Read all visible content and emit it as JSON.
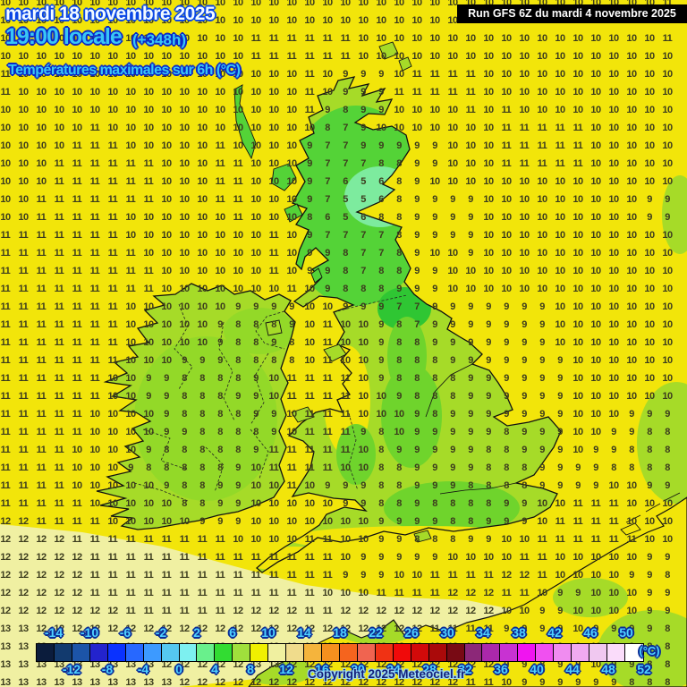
{
  "header": {
    "date": "mardi 18 novembre 2025",
    "time": "19:00 locale",
    "forecast_offset": "(+348h)",
    "subtitle": "Températures maximales sur 6h (°C)",
    "run_info": "Run GFS 6Z du mardi 4 novembre 2025"
  },
  "footer": {
    "copyright": "Copyright 2025 Meteociel.fr",
    "unit_label": "(°C)"
  },
  "palette": {
    "sea": "#f2e50a",
    "pale": "#f0f0a2",
    "land": "#a6db28",
    "green": "#54d337",
    "green2": "#6fd42c",
    "green3": "#93d928",
    "dgreen": "#2fc633",
    "mint": "#7deb9e",
    "num": "#3c3c1e"
  },
  "colorbar": {
    "labels_top": [
      "-14",
      "-10",
      "-6",
      "-2",
      "2",
      "6",
      "10",
      "14",
      "18",
      "22",
      "26",
      "30",
      "34",
      "38",
      "42",
      "46",
      "50"
    ],
    "labels_bottom": [
      "-12",
      "-8",
      "-4",
      "0",
      "4",
      "8",
      "12",
      "16",
      "20",
      "24",
      "28",
      "32",
      "36",
      "40",
      "44",
      "48",
      "52"
    ],
    "colors": [
      "#0b1c3c",
      "#123a6e",
      "#1c54a8",
      "#2323cd",
      "#0a32ff",
      "#2768ff",
      "#3d9aff",
      "#55c8f0",
      "#7df0f0",
      "#69f08c",
      "#32dc32",
      "#a0e03c",
      "#f0f000",
      "#f0f0a0",
      "#f0dc8c",
      "#f5b43c",
      "#f5901e",
      "#f5641e",
      "#f06450",
      "#f03214",
      "#f00a0a",
      "#d20a0a",
      "#aa0a0a",
      "#780a14",
      "#8c2878",
      "#aa28aa",
      "#c832d2",
      "#f014f0",
      "#f050f0",
      "#f08cf0",
      "#f0aaf0",
      "#f0c8f0",
      "#fadcfa",
      "#ffffff"
    ]
  },
  "grid": {
    "rows": [
      "10 10 10 10 10 10 10 10 10 10 10 10 10 10 10 10 10 10 10 10 10 10 10 10 10 10 10 10 10 10 10 10 10 10 10 10 10 11",
      "10 10 10 10 10 10 10 10 10 10 10 10 10 10 10 10 10 10 10 10 10 10 10 10 10 10 10 10 10 10 10 10 10 10 10 10 10 11",
      "10 10 10 10 10 10 10 10 10 10 10 10 10 10 11 11 11 11 11 11 10 10 10 10 10 10 10 10 10 10 10 10 10 10 10 10 10 11",
      "10 10 10 10 10 10 10 10 10 10 10 10 10 10 11 11 11 11 11 11 10 10 10 10 10 10 10 10 10 10 10 10 10 10 10 10 10 10",
      "11 10 10 10 10 10 10 10 10 10 10 10 10 10 10 10 10 11 10 9 9 9 10 11 11 11 11 10 10 10 10 10 10 10 10 10 10 10",
      "11 10 10 10 10 10 10 10 10 10 10 10 10 10 10 10 10 11 10 9 9 9 11 11 11 11 11 10 10 10 10 10 10 10 10 10 10 10",
      "10 10 10 10 10 10 10 10 10 10 10 10 10 10 10 10 10 11 9 8 9 9 10 10 10 10 11 10 11 10 10 10 10 10 10 10 10 10",
      "10 10 10 10 10 11 10 10 10 10 10 10 10 10 10 10 10 10 8 7 9 10 10 10 10 10 10 10 11 11 11 11 11 10 10 10 10 10",
      "10 10 10 10 11 11 11 10 10 10 10 10 11 10 10 10 10 9 7 7 9 9 9 9 9 10 10 10 11 11 11 11 11 10 10 10 10 10",
      "10 10 10 11 11 11 11 11 11 10 10 10 11 11 10 10 10 9 7 7 7 8 8 9 9 10 10 10 11 11 11 11 11 10 10 10 10 10",
      "10 10 10 11 11 11 11 11 11 10 10 10 11 11 10 10 10 9 7 6 5 6 8 9 10 10 10 10 10 10 10 10 10 10 10 10 10 10",
      "10 10 11 11 11 11 11 11 11 10 10 10 11 11 10 10 10 9 7 5 5 6 8 9 9 9 9 10 10 10 10 10 10 10 10 10 9 9",
      "10 10 11 11 11 11 11 10 10 10 10 10 10 11 10 10 10 8 6 5 6 8 8 9 9 9 9 10 10 10 10 10 10 10 10 10 9 9",
      "11 11 11 11 11 11 11 10 10 10 10 10 10 10 10 11 10 9 7 7 7 7 8 9 9 9 9 10 10 10 10 10 10 10 10 10 10 10",
      "11 11 11 11 11 11 11 11 10 10 10 10 10 10 10 11 10 9 9 8 7 7 8 9 10 10 9 10 10 10 10 10 10 10 10 10 10 10",
      "11 11 11 11 11 11 11 11 11 10 10 10 10 10 10 11 10 9 9 8 7 8 8 9 9 10 10 10 10 10 10 10 10 10 10 10 10 10",
      "11 11 11 11 11 11 11 11 11 10 10 10 10 10 10 10 11 10 9 8 8 8 9 9 9 10 10 10 10 10 10 10 10 10 10 10 10 10",
      "11 11 11 11 11 11 11 10 10 10 10 10 10 9 9 9 9 10 10 9 9 9 7 7 9 9 9 9 9 9 9 10 10 10 10 10 10 10",
      "11 11 11 11 11 11 11 10 10 10 10 10 9 8 8 8 9 10 11 10 10 9 8 7 9 9 9 9 9 9 9 10 10 10 10 10 10 10",
      "11 11 11 11 11 11 11 10 10 10 10 10 9 8 8 9 8 10 11 10 10 9 8 8 9 9 9 9 9 9 9 10 10 10 10 10 10 10",
      "11 11 11 11 11 11 11 10 10 10 9 9 9 8 8 8 8 10 11 10 10 9 8 8 8 9 9 9 9 9 9 9 10 10 10 10 10 10",
      "11 11 11 11 11 11 10 10 9 9 8 8 8 8 9 10 11 11 11 11 10 9 8 8 8 8 9 9 9 9 9 9 10 10 10 10 10 10",
      "11 11 11 11 11 11 10 10 9 9 8 8 8 9 9 10 11 11 11 11 10 10 9 8 8 8 9 9 9 9 9 9 10 10 10 10 10 10",
      "11 11 11 11 11 10 10 10 10 9 8 8 8 8 9 9 10 11 11 11 10 10 10 9 8 9 9 9 9 9 9 9 10 10 10 9 9 9",
      "11 11 11 11 11 10 10 10 10 9 9 8 8 8 8 9 10 11 11 11 9 8 10 9 9 9 9 9 8 9 9 9 10 10 9 9 8 8",
      "11 11 11 11 10 10 10 10 9 8 8 8 8 8 9 11 11 11 11 11 10 8 9 9 9 9 9 8 8 9 9 9 10 9 9 8 8 8",
      "11 11 11 11 10 10 10 9 8 8 8 8 8 9 10 11 11 11 11 10 10 8 8 9 9 9 9 8 8 8 9 9 9 9 8 8 8 8",
      "11 11 11 11 10 10 10 10 10 9 8 8 9 9 10 10 11 10 9 9 9 8 8 9 9 9 8 8 8 8 9 9 9 9 10 10 9 9",
      "11 11 11 11 11 10 10 10 10 10 8 8 9 9 10 10 10 10 10 9 9 8 8 9 8 8 8 8 9 9 10 10 11 11 11 10 10 10",
      "12 12 11 11 11 11 10 10 10 10 10 9 9 9 10 10 10 10 10 10 10 9 9 9 9 8 8 9 9 9 10 11 11 11 11 10 10 10",
      "12 12 12 12 11 11 11 11 11 11 11 11 11 10 10 10 10 11 11 10 10 9 9 8 8 8 9 9 10 10 11 11 11 11 11 11 10 10",
      "12 12 12 12 12 11 11 11 11 11 11 11 11 11 11 11 11 11 11 10 9 9 9 9 9 10 10 10 10 11 11 10 10 10 10 10 9 9",
      "12 12 12 12 12 11 11 11 11 11 11 11 11 11 11 11 11 11 11 9 9 9 10 10 11 11 11 11 12 12 11 10 10 10 10 9 9 8",
      "12 12 12 12 12 11 11 11 11 11 11 11 11 11 11 11 11 11 10 10 10 11 11 11 11 12 12 12 11 11 10 9 9 10 10 10 9 9",
      "12 12 12 12 12 12 12 11 11 11 11 11 11 12 12 12 12 11 11 12 12 12 12 12 12 12 12 12 10 10 9 9 10 10 10 10 9 9",
      "13 13 12 12 12 12 12 12 12 12 12 12 12 12 12 12 12 12 12 12 12 12 12 12 11 11 11 11 9 9 9 9 10 9 9 9 9 8",
      "13 13 13 13 13 12 12 12 13 13 12 12 12 12 12 12 12 12 12 12 12 12 12 12 12 12 11 11 9 9 8 9 9 10 9 9 8 8",
      "13 13 13 13 13 13 13 13 13 12 12 12 12 12 13 13 12 12 12 12 12 12 12 12 12 12 12 12 9 9 8 9 9 10 9 9 8 8",
      "13 13 13 13 13 13 13 13 13 13 12 12 12 12 12 12 12 12 12 12 12 12 12 12 12 12 11 11 10 9 9 9 9 9 9 8 8 8"
    ]
  }
}
